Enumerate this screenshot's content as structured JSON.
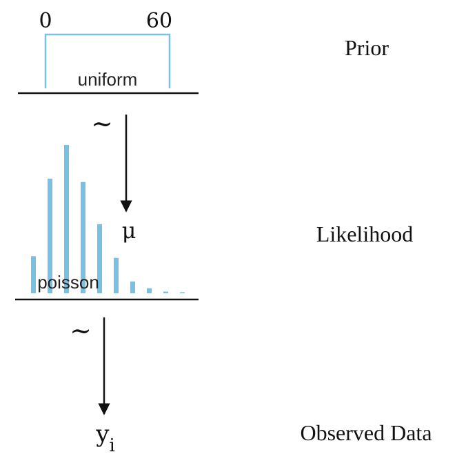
{
  "prior": {
    "tick_min": "0",
    "tick_max": "60",
    "dist_label": "uniform",
    "section_label": "Prior",
    "tilde": "~"
  },
  "likelihood": {
    "param_label": "μ",
    "dist_label": "poisson",
    "section_label": "Likelihood",
    "tilde": "~",
    "bar_levels": [
      0.22,
      0.68,
      0.88,
      0.66,
      0.41,
      0.21,
      0.07,
      0.03,
      0.01,
      0.005
    ]
  },
  "data": {
    "var_label": "y",
    "var_subscript": "i",
    "section_label": "Observed Data"
  },
  "colors": {
    "accent": "#79c0e3",
    "line": "#111111"
  }
}
